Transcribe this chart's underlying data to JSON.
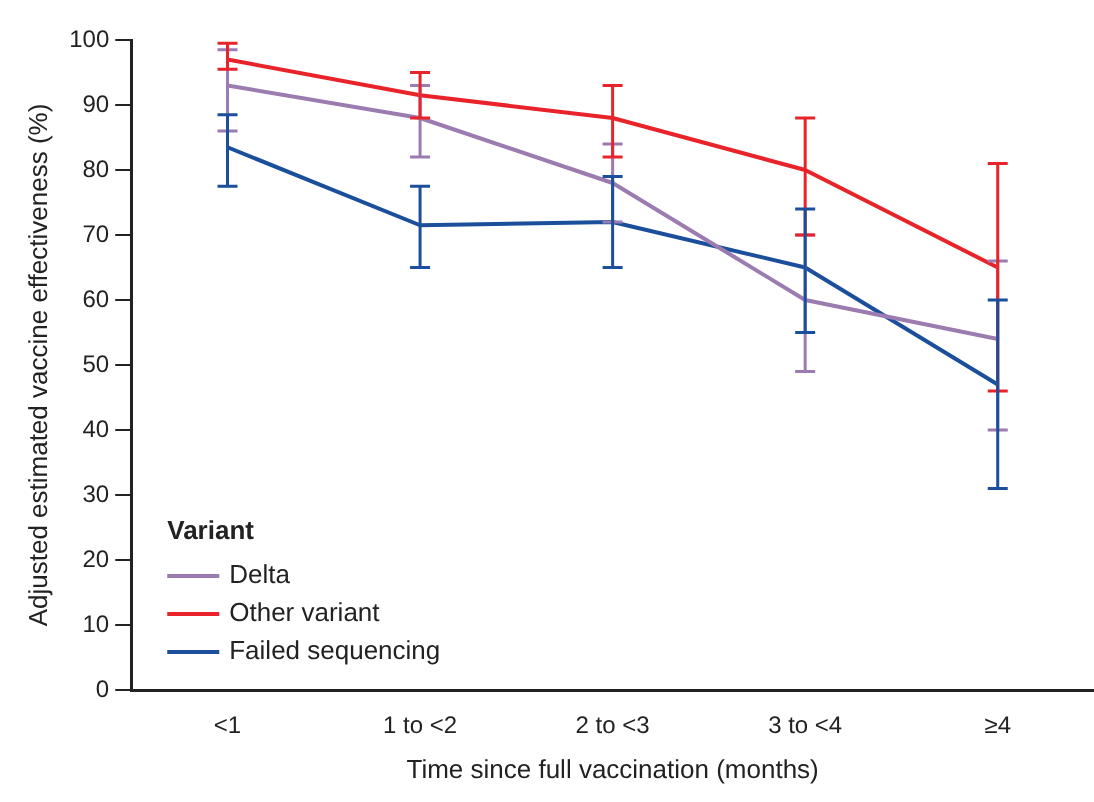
{
  "chart_data": {
    "type": "line",
    "xlabel": "Time since full vaccination (months)",
    "ylabel": "Adjusted estimated vaccine effectiveness (%)",
    "legend_title": "Variant",
    "categories": [
      "<1",
      "1 to <2",
      "2 to <3",
      "3 to <4",
      "≥4"
    ],
    "series": [
      {
        "name": "Delta",
        "color": "#9b7bb0",
        "values": [
          93,
          88,
          78,
          60,
          54
        ],
        "errors": [
          [
            86,
            98.5
          ],
          [
            82,
            93
          ],
          [
            72,
            84
          ],
          [
            49,
            70
          ],
          [
            40,
            66
          ]
        ]
      },
      {
        "name": "Other variant",
        "color": "#e8242a",
        "values": [
          97,
          91.5,
          88,
          80,
          65
        ],
        "errors": [
          [
            95.5,
            99.5
          ],
          [
            88,
            95
          ],
          [
            82,
            93
          ],
          [
            70,
            88
          ],
          [
            46,
            81
          ]
        ]
      },
      {
        "name": "Failed sequencing",
        "color": "#1b4f9c",
        "values": [
          83.5,
          71.5,
          72,
          65,
          47
        ],
        "errors": [
          [
            77.5,
            88.5
          ],
          [
            65,
            77.5
          ],
          [
            65,
            79
          ],
          [
            55,
            74
          ],
          [
            31,
            60
          ]
        ]
      }
    ],
    "ylim": [
      0,
      100
    ],
    "yticks": [
      0,
      10,
      20,
      30,
      40,
      50,
      60,
      70,
      80,
      90,
      100
    ],
    "grid": false,
    "legend": "bottom left",
    "marker": "none",
    "line_style": "solid"
  }
}
